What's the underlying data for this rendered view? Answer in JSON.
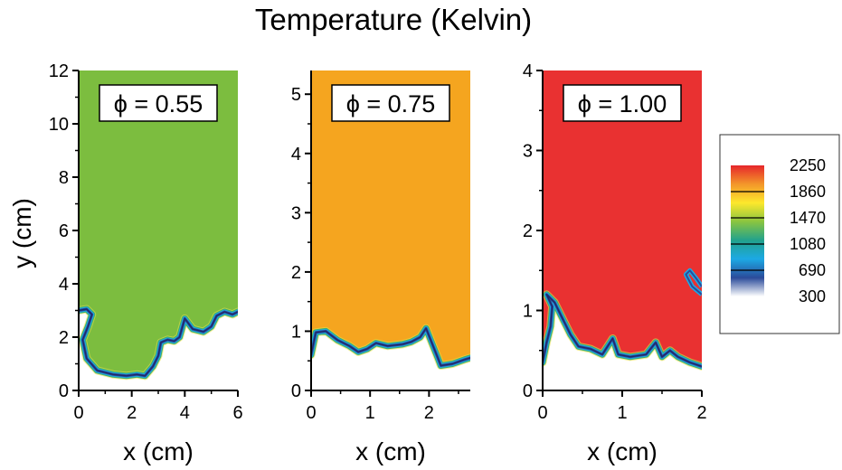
{
  "chart_data": {
    "type": "heatmap",
    "title": "Temperature (Kelvin)",
    "ylabel": "y (cm)",
    "colorbar": {
      "ticks": [
        2250,
        1860,
        1470,
        1080,
        690,
        300
      ],
      "tick_labels": [
        "2250",
        "1860",
        "1470",
        "1080",
        "690",
        "300"
      ],
      "colors": [
        "#e6262b",
        "#f3962a",
        "#fde82c",
        "#8ac540",
        "#23a28c",
        "#1ca9e4",
        "#2b4b9a",
        "#ffffff"
      ]
    },
    "panels": [
      {
        "name": "panel-055",
        "label": "ϕ = 0.55",
        "xlabel": "x (cm)",
        "xlim": [
          0,
          6
        ],
        "ylim": [
          0,
          12
        ],
        "xticks": [
          0,
          2,
          4,
          6
        ],
        "yticks": [
          0,
          2,
          4,
          6,
          8,
          10,
          12
        ],
        "xtick_labels": [
          "0",
          "2",
          "4",
          "6"
        ],
        "ytick_labels": [
          "0",
          "2",
          "4",
          "6",
          "8",
          "10",
          "12"
        ],
        "burned_temperature_color": "#7cbd3f",
        "front": [
          [
            0,
            3.0
          ],
          [
            0.3,
            3.05
          ],
          [
            0.5,
            2.85
          ],
          [
            0.35,
            2.4
          ],
          [
            0.15,
            1.9
          ],
          [
            0.3,
            1.2
          ],
          [
            0.7,
            0.75
          ],
          [
            1.3,
            0.6
          ],
          [
            1.8,
            0.55
          ],
          [
            2.2,
            0.6
          ],
          [
            2.5,
            0.55
          ],
          [
            2.8,
            0.9
          ],
          [
            3.0,
            1.3
          ],
          [
            3.1,
            1.8
          ],
          [
            3.35,
            1.9
          ],
          [
            3.6,
            1.85
          ],
          [
            3.8,
            2.0
          ],
          [
            4.0,
            2.7
          ],
          [
            4.3,
            2.3
          ],
          [
            4.7,
            2.2
          ],
          [
            5.0,
            2.4
          ],
          [
            5.2,
            2.8
          ],
          [
            5.5,
            2.95
          ],
          [
            5.8,
            2.85
          ],
          [
            6,
            2.95
          ]
        ]
      },
      {
        "name": "panel-075",
        "label": "ϕ = 0.75",
        "xlabel": "x (cm)",
        "xlim": [
          0,
          2.7
        ],
        "ylim": [
          0,
          5.4
        ],
        "xticks": [
          0,
          1,
          2
        ],
        "yticks": [
          0,
          1,
          2,
          3,
          4,
          5
        ],
        "xtick_labels": [
          "0",
          "1",
          "2"
        ],
        "ytick_labels": [
          "0",
          "1",
          "2",
          "3",
          "4",
          "5"
        ],
        "burned_temperature_color": "#f5a51f",
        "front": [
          [
            0,
            0.6
          ],
          [
            0.08,
            0.98
          ],
          [
            0.25,
            1.0
          ],
          [
            0.45,
            0.85
          ],
          [
            0.65,
            0.75
          ],
          [
            0.8,
            0.65
          ],
          [
            0.95,
            0.7
          ],
          [
            1.1,
            0.8
          ],
          [
            1.3,
            0.75
          ],
          [
            1.55,
            0.78
          ],
          [
            1.7,
            0.82
          ],
          [
            1.85,
            0.9
          ],
          [
            1.95,
            1.05
          ],
          [
            2.05,
            0.8
          ],
          [
            2.15,
            0.55
          ],
          [
            2.2,
            0.42
          ],
          [
            2.4,
            0.45
          ],
          [
            2.6,
            0.52
          ],
          [
            2.7,
            0.55
          ]
        ]
      },
      {
        "name": "panel-100",
        "label": "ϕ = 1.00",
        "xlabel": "x (cm)",
        "xlim": [
          0,
          2
        ],
        "ylim": [
          0,
          4
        ],
        "xticks": [
          0,
          1,
          2
        ],
        "yticks": [
          0,
          1,
          2,
          3,
          4
        ],
        "xtick_labels": [
          "0",
          "1",
          "2"
        ],
        "ytick_labels": [
          "0",
          "1",
          "2",
          "3",
          "4"
        ],
        "burned_temperature_color": "#e93131",
        "front": [
          [
            0,
            0.35
          ],
          [
            0.05,
            0.6
          ],
          [
            0.1,
            0.8
          ],
          [
            0.12,
            1.05
          ],
          [
            0.05,
            1.2
          ],
          [
            0.15,
            1.1
          ],
          [
            0.25,
            0.9
          ],
          [
            0.35,
            0.7
          ],
          [
            0.45,
            0.55
          ],
          [
            0.6,
            0.52
          ],
          [
            0.75,
            0.45
          ],
          [
            0.88,
            0.65
          ],
          [
            0.95,
            0.45
          ],
          [
            1.1,
            0.42
          ],
          [
            1.3,
            0.45
          ],
          [
            1.42,
            0.6
          ],
          [
            1.5,
            0.42
          ],
          [
            1.6,
            0.5
          ],
          [
            1.7,
            0.42
          ],
          [
            1.85,
            0.35
          ],
          [
            2,
            0.3
          ]
        ]
      }
    ]
  }
}
